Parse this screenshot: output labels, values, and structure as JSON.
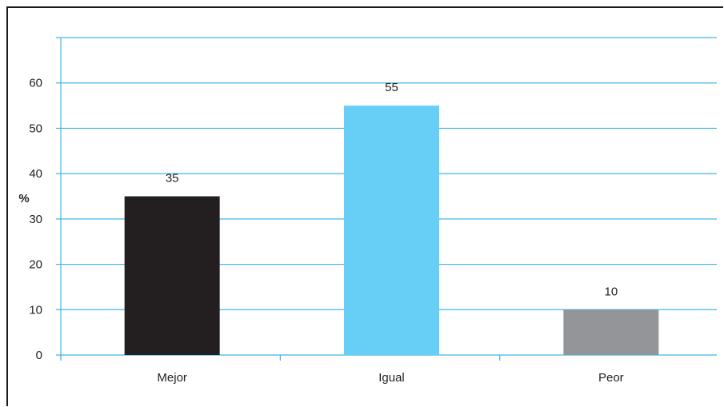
{
  "chart_data": {
    "type": "bar",
    "title": "",
    "xlabel": "",
    "ylabel": "%",
    "categories": [
      "Mejor",
      "Igual",
      "Peor"
    ],
    "values": [
      35,
      55,
      10
    ],
    "data_labels": [
      "35",
      "55",
      "10"
    ],
    "bar_colors": [
      "#231f20",
      "#67cff5",
      "#939598"
    ],
    "ylim": [
      0,
      70
    ],
    "yticks": [
      0,
      10,
      20,
      30,
      40,
      50,
      60
    ],
    "ytick_labels": [
      "0",
      "10",
      "20",
      "30",
      "40",
      "50",
      "60"
    ],
    "grid": true,
    "grid_color": "#3fb6e8",
    "legend": "none"
  }
}
